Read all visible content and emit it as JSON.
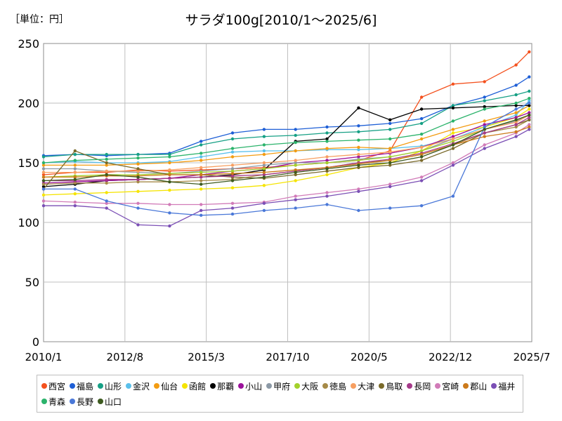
{
  "unit_label": "［単位：円］",
  "chart_data": {
    "type": "line",
    "title": "サラダ100g[2010/1～2025/6]",
    "xlabel": "",
    "ylabel": "",
    "ylim": [
      0,
      250
    ],
    "yticks": [
      0,
      50,
      100,
      150,
      200,
      250
    ],
    "xlim": [
      "2010/1",
      "2025/7"
    ],
    "xticks": [
      "2010/1",
      "2012/8",
      "2015/3",
      "2017/10",
      "2020/5",
      "2022/12",
      "2025/7"
    ],
    "grid": true,
    "legend_position": "bottom",
    "x": [
      "2010/1",
      "2011/1",
      "2012/1",
      "2013/1",
      "2014/1",
      "2015/1",
      "2016/1",
      "2017/1",
      "2018/1",
      "2019/1",
      "2020/1",
      "2021/1",
      "2022/1",
      "2023/1",
      "2024/1",
      "2025/1",
      "2025/6"
    ],
    "series": [
      {
        "name": "西宮",
        "color": "#f4511e",
        "values": [
          140,
          142,
          142,
          144,
          143,
          144,
          145,
          146,
          148,
          150,
          152,
          160,
          205,
          216,
          218,
          232,
          243
        ]
      },
      {
        "name": "福島",
        "color": "#1e5fd6",
        "values": [
          156,
          157,
          156,
          157,
          158,
          168,
          175,
          178,
          178,
          180,
          181,
          183,
          187,
          198,
          205,
          215,
          222
        ]
      },
      {
        "name": "山形",
        "color": "#16a085",
        "values": [
          155,
          157,
          157,
          157,
          157,
          165,
          170,
          172,
          173,
          175,
          176,
          178,
          183,
          198,
          202,
          207,
          210
        ]
      },
      {
        "name": "金沢",
        "color": "#5bc0eb",
        "values": [
          150,
          151,
          150,
          150,
          151,
          155,
          159,
          160,
          160,
          161,
          161,
          162,
          164,
          170,
          180,
          190,
          202
        ]
      },
      {
        "name": "仙台",
        "color": "#f39c12",
        "values": [
          148,
          148,
          148,
          149,
          150,
          152,
          155,
          157,
          160,
          162,
          163,
          162,
          170,
          178,
          185,
          192,
          198
        ]
      },
      {
        "name": "函館",
        "color": "#f5e400",
        "values": [
          123,
          124,
          125,
          126,
          127,
          128,
          129,
          131,
          135,
          140,
          146,
          150,
          160,
          175,
          180,
          188,
          195
        ]
      },
      {
        "name": "那覇",
        "color": "#000000",
        "values": [
          130,
          132,
          135,
          136,
          137,
          138,
          140,
          144,
          168,
          170,
          196,
          186,
          195,
          196,
          197,
          198,
          198
        ]
      },
      {
        "name": "小山",
        "color": "#9b119b",
        "values": [
          133,
          134,
          135,
          136,
          137,
          140,
          143,
          145,
          150,
          152,
          155,
          158,
          163,
          172,
          182,
          188,
          192
        ]
      },
      {
        "name": "甲府",
        "color": "#8c99a6",
        "values": [
          145,
          145,
          143,
          142,
          141,
          143,
          145,
          148,
          150,
          150,
          153,
          155,
          160,
          170,
          178,
          185,
          190
        ]
      },
      {
        "name": "大阪",
        "color": "#a3d12b",
        "values": [
          138,
          139,
          140,
          140,
          141,
          142,
          143,
          145,
          148,
          150,
          152,
          155,
          160,
          168,
          178,
          186,
          190
        ]
      },
      {
        "name": "徳島",
        "color": "#a68a48",
        "values": [
          132,
          133,
          133,
          134,
          134,
          135,
          136,
          140,
          143,
          146,
          150,
          152,
          157,
          165,
          175,
          180,
          186
        ]
      },
      {
        "name": "大津",
        "color": "#f79f61",
        "values": [
          142,
          142,
          143,
          143,
          144,
          146,
          148,
          150,
          152,
          155,
          157,
          159,
          163,
          170,
          178,
          184,
          190
        ]
      },
      {
        "name": "鳥取",
        "color": "#7a6a2a",
        "values": [
          128,
          160,
          150,
          145,
          140,
          140,
          138,
          137,
          140,
          143,
          146,
          148,
          152,
          162,
          175,
          182,
          186
        ]
      },
      {
        "name": "長岡",
        "color": "#a63a8a",
        "values": [
          135,
          135,
          136,
          136,
          137,
          138,
          139,
          140,
          143,
          146,
          150,
          153,
          158,
          166,
          175,
          182,
          188
        ]
      },
      {
        "name": "宮崎",
        "color": "#d17bb8",
        "values": [
          118,
          117,
          116,
          116,
          115,
          115,
          116,
          117,
          122,
          125,
          128,
          132,
          138,
          150,
          165,
          175,
          182
        ]
      },
      {
        "name": "郡山",
        "color": "#cc7a1a",
        "values": [
          138,
          138,
          139,
          139,
          140,
          140,
          141,
          142,
          144,
          146,
          149,
          152,
          157,
          165,
          172,
          176,
          180
        ]
      },
      {
        "name": "福井",
        "color": "#7b4fb5",
        "values": [
          114,
          114,
          112,
          98,
          97,
          110,
          112,
          116,
          119,
          122,
          126,
          130,
          135,
          148,
          162,
          172,
          178
        ]
      },
      {
        "name": "青森",
        "color": "#2bb36b",
        "values": [
          150,
          152,
          153,
          154,
          155,
          158,
          162,
          165,
          167,
          168,
          169,
          170,
          174,
          185,
          195,
          200,
          204
        ]
      },
      {
        "name": "長野",
        "color": "#4a78d8",
        "values": [
          128,
          128,
          118,
          112,
          108,
          106,
          107,
          110,
          112,
          115,
          110,
          112,
          114,
          122,
          180,
          195,
          200
        ]
      },
      {
        "name": "山口",
        "color": "#3d5a1f",
        "values": [
          135,
          136,
          140,
          138,
          134,
          132,
          135,
          138,
          142,
          145,
          148,
          150,
          155,
          165,
          178,
          186,
          190
        ]
      }
    ]
  }
}
